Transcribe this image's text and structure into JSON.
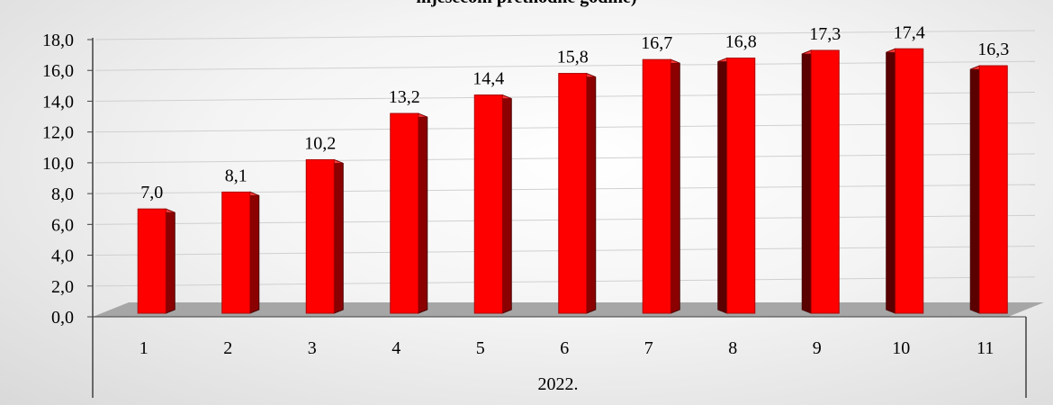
{
  "chart_data": {
    "type": "bar",
    "title": "mjesecom prethodne godine)",
    "categories": [
      "1",
      "2",
      "3",
      "4",
      "5",
      "6",
      "7",
      "8",
      "9",
      "10",
      "11"
    ],
    "group_label": "2022.",
    "values": [
      7.0,
      8.1,
      10.2,
      13.2,
      14.4,
      15.8,
      16.7,
      16.8,
      17.3,
      17.4,
      16.3
    ],
    "value_labels": [
      "7,0",
      "8,1",
      "10,2",
      "13,2",
      "14,4",
      "15,8",
      "16,7",
      "16,8",
      "17,3",
      "17,4",
      "16,3"
    ],
    "ylim": [
      0,
      18
    ],
    "yticks": [
      "0,0",
      "2,0",
      "4,0",
      "6,0",
      "8,0",
      "10,0",
      "12,0",
      "14,0",
      "16,0",
      "18,0"
    ],
    "grid": true,
    "style": "3d-column",
    "colors": {
      "bar_front": "#ff0000",
      "bar_side": "#8b0000",
      "bar_side_dark": "#5a0000",
      "bar_top": "#ff3b3b",
      "floor": "#a6a6a6",
      "grid": "#d0d0d0",
      "axis": "#404040"
    }
  }
}
